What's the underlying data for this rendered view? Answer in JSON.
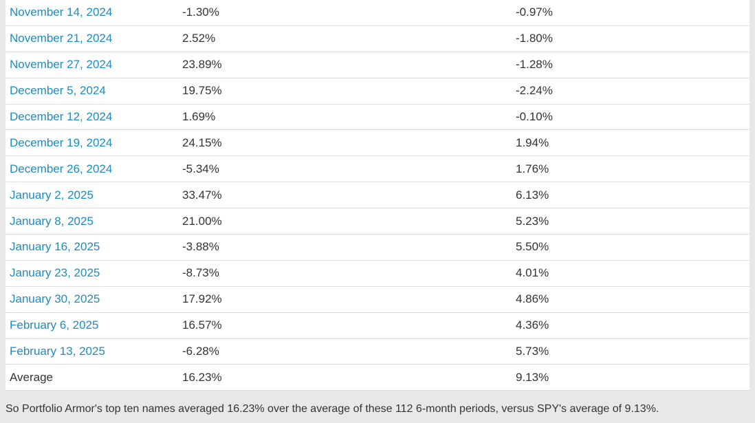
{
  "table": {
    "columns": [
      "date",
      "top_ten_return",
      "spy_return"
    ],
    "rows": [
      {
        "date": "November 14, 2024",
        "top_ten": "-1.30%",
        "spy": "-0.97%",
        "link": true
      },
      {
        "date": "November 21, 2024",
        "top_ten": "2.52%",
        "spy": "-1.80%",
        "link": true
      },
      {
        "date": "November 27, 2024",
        "top_ten": "23.89%",
        "spy": "-1.28%",
        "link": true
      },
      {
        "date": "December 5, 2024",
        "top_ten": "19.75%",
        "spy": "-2.24%",
        "link": true
      },
      {
        "date": "December 12, 2024",
        "top_ten": "1.69%",
        "spy": "-0.10%",
        "link": true
      },
      {
        "date": "December 19, 2024",
        "top_ten": "24.15%",
        "spy": "1.94%",
        "link": true
      },
      {
        "date": "December 26, 2024",
        "top_ten": "-5.34%",
        "spy": "1.76%",
        "link": true
      },
      {
        "date": "January 2, 2025",
        "top_ten": "33.47%",
        "spy": "6.13%",
        "link": true
      },
      {
        "date": "January 8, 2025",
        "top_ten": "21.00%",
        "spy": "5.23%",
        "link": true
      },
      {
        "date": "January 16, 2025",
        "top_ten": "-3.88%",
        "spy": "5.50%",
        "link": true
      },
      {
        "date": "January 23, 2025",
        "top_ten": "-8.73%",
        "spy": "4.01%",
        "link": true
      },
      {
        "date": "January 30, 2025",
        "top_ten": "17.92%",
        "spy": "4.86%",
        "link": true
      },
      {
        "date": "February 6, 2025",
        "top_ten": "16.57%",
        "spy": "4.36%",
        "link": true
      },
      {
        "date": "February 13, 2025",
        "top_ten": "-6.28%",
        "spy": "5.73%",
        "link": true
      },
      {
        "date": "Average",
        "top_ten": "16.23%",
        "spy": "9.13%",
        "link": false
      }
    ]
  },
  "footer": {
    "text": "So Portfolio Armor's top ten names averaged 16.23% over the average of these 112 6-month periods, versus SPY's average of 9.13%."
  },
  "colors": {
    "link_blue": "#1e8bc3",
    "page_bg": "#e8e8e8",
    "row_border": "#dddddd",
    "text": "#333333",
    "table_bg": "#ffffff"
  }
}
